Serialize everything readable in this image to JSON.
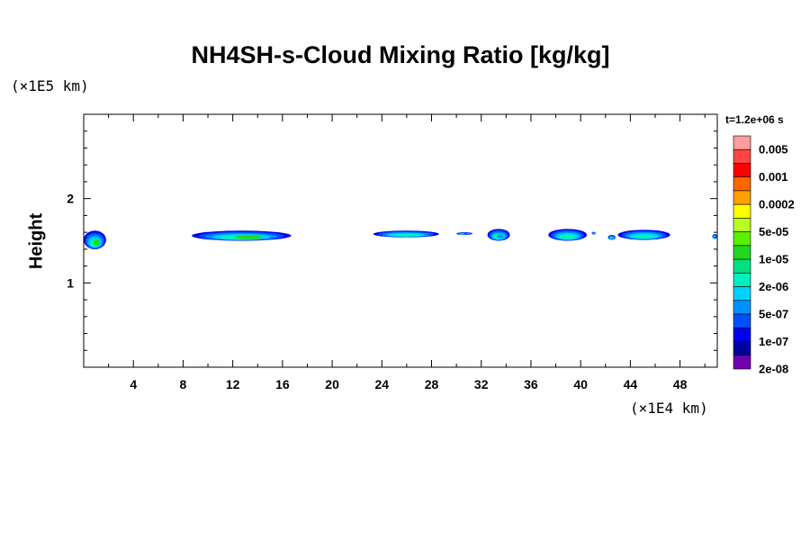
{
  "chart_data": {
    "type": "heatmap",
    "title": "NH4SH-s-Cloud Mixing Ratio [kg/kg]",
    "ylabel": "Height",
    "xlabel": "",
    "x_scale_note": "(×1E4 km)",
    "y_scale_note": "(×1E5 km)",
    "time_label": "t=1.2e+06 s",
    "xlim": [
      0,
      51
    ],
    "ylim": [
      0,
      3
    ],
    "x_ticks": [
      "4",
      "8",
      "12",
      "16",
      "20",
      "24",
      "28",
      "32",
      "36",
      "40",
      "44",
      "48"
    ],
    "y_ticks": [
      "1",
      "2"
    ],
    "x_tick_values": [
      4,
      8,
      12,
      16,
      20,
      24,
      28,
      32,
      36,
      40,
      44,
      48
    ],
    "y_tick_values": [
      1,
      2
    ],
    "colorbar": {
      "levels": [
        "0.005",
        "0.001",
        "0.0002",
        "5e-05",
        "1e-05",
        "2e-06",
        "5e-07",
        "1e-07",
        "2e-08"
      ],
      "colors_top_to_bottom": [
        "#ff9c9c",
        "#ff4444",
        "#ff0000",
        "#ff6600",
        "#ffa000",
        "#ffff00",
        "#b8ff20",
        "#58f000",
        "#20d820",
        "#00e080",
        "#00f0c0",
        "#00d0ff",
        "#0090ff",
        "#0050ff",
        "#0000f0",
        "#0000a0",
        "#7000b0"
      ]
    },
    "cloud_patches": [
      {
        "x_start": 0.0,
        "x_end": 1.8,
        "y_low": 1.4,
        "y_high": 1.62,
        "core": "1e-05"
      },
      {
        "x_start": 8.7,
        "x_end": 16.7,
        "y_low": 1.5,
        "y_high": 1.62,
        "core": "1e-05"
      },
      {
        "x_start": 23.3,
        "x_end": 28.6,
        "y_low": 1.54,
        "y_high": 1.62,
        "core": "2e-06"
      },
      {
        "x_start": 30.0,
        "x_end": 31.3,
        "y_low": 1.57,
        "y_high": 1.6,
        "core": "1e-07"
      },
      {
        "x_start": 32.5,
        "x_end": 34.3,
        "y_low": 1.5,
        "y_high": 1.64,
        "core": "5e-07"
      },
      {
        "x_start": 37.4,
        "x_end": 40.5,
        "y_low": 1.5,
        "y_high": 1.64,
        "core": "2e-06"
      },
      {
        "x_start": 40.9,
        "x_end": 41.2,
        "y_low": 1.58,
        "y_high": 1.6,
        "core": "1e-07"
      },
      {
        "x_start": 42.2,
        "x_end": 42.8,
        "y_low": 1.51,
        "y_high": 1.57,
        "core": "5e-07"
      },
      {
        "x_start": 43.0,
        "x_end": 47.2,
        "y_low": 1.51,
        "y_high": 1.63,
        "core": "2e-06"
      },
      {
        "x_start": 50.6,
        "x_end": 51.0,
        "y_low": 1.52,
        "y_high": 1.58,
        "core": "1e-07"
      }
    ]
  }
}
